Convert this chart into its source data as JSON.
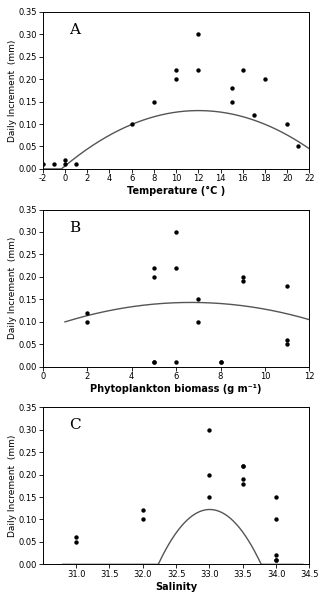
{
  "panel_A": {
    "label": "A",
    "scatter_x": [
      -2,
      -1,
      0,
      0,
      1,
      6,
      8,
      10,
      10,
      12,
      12,
      15,
      15,
      16,
      17,
      18,
      20,
      21
    ],
    "scatter_y": [
      0.01,
      0.01,
      0.02,
      0.01,
      0.01,
      0.1,
      0.15,
      0.22,
      0.2,
      0.3,
      0.22,
      0.18,
      0.15,
      0.22,
      0.12,
      0.2,
      0.1,
      0.05
    ],
    "curve_xrange": [
      -2,
      22
    ],
    "curve_coeffs": [
      -0.000855,
      0.02055,
      0.0065
    ],
    "xlim": [
      -2,
      22
    ],
    "xticks": [
      -2,
      0,
      2,
      4,
      6,
      8,
      10,
      12,
      14,
      16,
      18,
      20,
      22
    ],
    "xtick_labels": [
      "-2",
      "0",
      "2",
      "4",
      "6",
      "8",
      "10",
      "12",
      "14",
      "16",
      "18",
      "20",
      "22"
    ],
    "ylim": [
      0,
      0.35
    ],
    "yticks": [
      0.0,
      0.05,
      0.1,
      0.15,
      0.2,
      0.25,
      0.3,
      0.35
    ],
    "xlabel": "Temperature (°C )",
    "ylabel": "Daily Increment  (mm)"
  },
  "panel_B": {
    "label": "B",
    "scatter_x": [
      2,
      2,
      5,
      5,
      5,
      5,
      6,
      6,
      6,
      7,
      7,
      8,
      8,
      9,
      9,
      11,
      11,
      11
    ],
    "scatter_y": [
      0.1,
      0.12,
      0.01,
      0.01,
      0.2,
      0.22,
      0.22,
      0.3,
      0.01,
      0.15,
      0.1,
      0.01,
      0.01,
      0.2,
      0.19,
      0.18,
      0.06,
      0.05
    ],
    "curve_xrange": [
      1,
      12
    ],
    "curve_coeffs": [
      -0.00135,
      0.018,
      0.083
    ],
    "xlim": [
      0,
      12
    ],
    "xticks": [
      0,
      2,
      4,
      6,
      8,
      10,
      12
    ],
    "xtick_labels": [
      "0",
      "2",
      "4",
      "6",
      "8",
      "10",
      "12"
    ],
    "ylim": [
      0,
      0.35
    ],
    "yticks": [
      0.0,
      0.05,
      0.1,
      0.15,
      0.2,
      0.25,
      0.3,
      0.35
    ],
    "xlabel": "Phytoplankton biomass (g m⁻¹)",
    "ylabel": "Daily Increment  (mm)"
  },
  "panel_C": {
    "label": "C",
    "scatter_x": [
      31.0,
      31.0,
      32.0,
      32.0,
      33.0,
      33.0,
      33.0,
      33.5,
      33.5,
      33.5,
      33.5,
      34.0,
      34.0,
      34.0,
      34.0,
      34.0
    ],
    "scatter_y": [
      0.06,
      0.05,
      0.1,
      0.12,
      0.3,
      0.2,
      0.15,
      0.22,
      0.18,
      0.19,
      0.22,
      0.15,
      0.1,
      0.01,
      0.02,
      0.01
    ],
    "curve_xrange": [
      30.8,
      34.4
    ],
    "curve_coeffs": [
      -0.2052,
      13.545,
      -223.4
    ],
    "xlim": [
      30.5,
      34.5
    ],
    "xticks": [
      31.0,
      31.5,
      32.0,
      32.5,
      33.0,
      33.5,
      34.0,
      34.5
    ],
    "xtick_labels": [
      "31.0",
      "31.5",
      "32.0",
      "32.5",
      "33.0",
      "33.5",
      "34.0",
      "34.5"
    ],
    "ylim": [
      0,
      0.35
    ],
    "yticks": [
      0.0,
      0.05,
      0.1,
      0.15,
      0.2,
      0.25,
      0.3,
      0.35
    ],
    "xlabel": "Salinity",
    "ylabel": "Daily Increment  (mm)"
  }
}
